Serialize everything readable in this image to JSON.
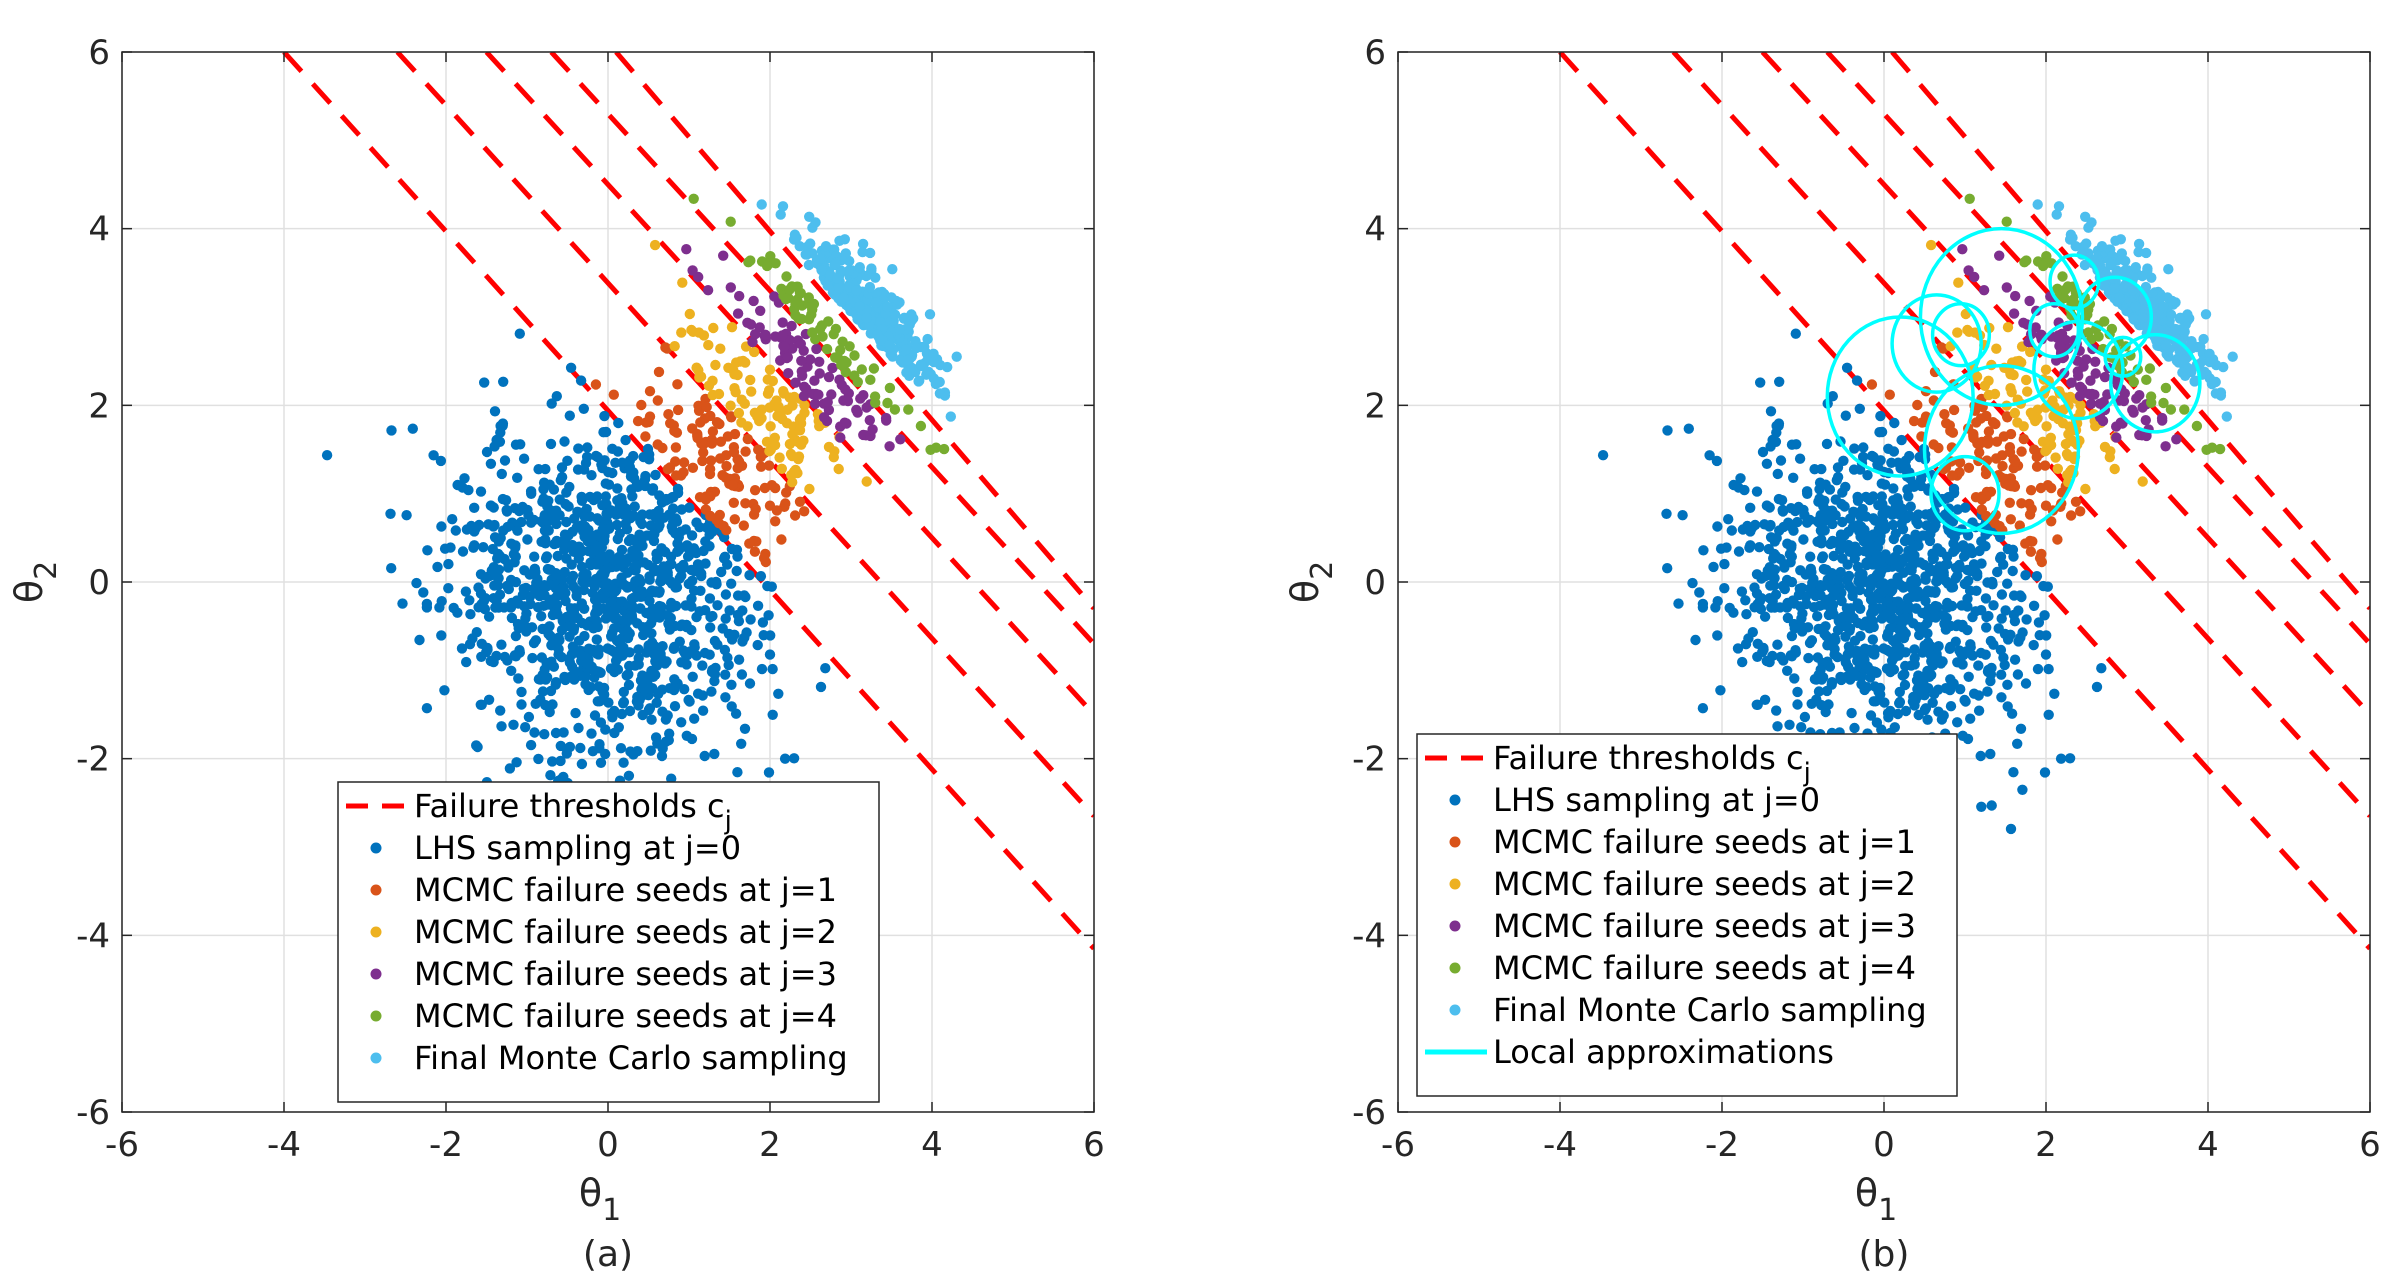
{
  "figure_captions": [
    "(a)",
    "(b)"
  ],
  "colors": {
    "threshold": "#ff0000",
    "lhs": "#0072bd",
    "j1": "#d95319",
    "j2": "#edb120",
    "j3": "#7e2f8e",
    "j4": "#77ac30",
    "final": "#4dbeee",
    "local": "#00ffff",
    "grid": "#e0e0e0"
  },
  "chart_data": [
    {
      "type": "scatter",
      "panel": "(a)",
      "xlabel": "θ",
      "xlabel_sub": "1",
      "ylabel": "θ",
      "ylabel_sub": "2",
      "xlim": [
        -6,
        6
      ],
      "ylim": [
        -6,
        6
      ],
      "xticks": [
        "-6",
        "-4",
        "-2",
        "0",
        "2",
        "4",
        "6"
      ],
      "yticks": [
        "-6",
        "-4",
        "-2",
        "0",
        "2",
        "4",
        "6"
      ],
      "grid": true,
      "legend_position": "bottom-center",
      "thresholds": [
        {
          "name": "c1",
          "x": [
            -4.0,
            6.0
          ],
          "y": [
            6.0,
            -4.15
          ]
        },
        {
          "name": "c2",
          "x": [
            -2.6,
            6.0
          ],
          "y": [
            6.0,
            -2.65
          ]
        },
        {
          "name": "c3",
          "x": [
            -1.5,
            6.0
          ],
          "y": [
            6.0,
            -1.5
          ]
        },
        {
          "name": "c4",
          "x": [
            -0.7,
            6.0
          ],
          "y": [
            6.0,
            -0.7
          ]
        },
        {
          "name": "c5",
          "x": [
            0.1,
            6.0
          ],
          "y": [
            6.0,
            -0.3
          ]
        }
      ],
      "series": [
        {
          "name": "LHS sampling at j=0",
          "color_key": "lhs",
          "distribution": "gaussian",
          "center": [
            0.0,
            0.0
          ],
          "spread": [
            1.0,
            1.0
          ],
          "count": 1100,
          "cutoff_sum": 2.0
        },
        {
          "name": "MCMC failure seeds at j=1",
          "color_key": "j1",
          "distribution": "band",
          "sum_range": [
            2.0,
            3.4
          ],
          "count": 130
        },
        {
          "name": "MCMC failure seeds at j=2",
          "color_key": "j2",
          "distribution": "band",
          "sum_range": [
            3.4,
            4.5
          ],
          "count": 110
        },
        {
          "name": "MCMC failure seeds at j=3",
          "color_key": "j3",
          "distribution": "band",
          "sum_range": [
            4.5,
            5.3
          ],
          "count": 90
        },
        {
          "name": "MCMC failure seeds at j=4",
          "color_key": "j4",
          "distribution": "band",
          "sum_range": [
            5.3,
            5.7
          ],
          "count": 70
        },
        {
          "name": "Final Monte Carlo sampling",
          "color_key": "final",
          "distribution": "cluster",
          "center": [
            3.1,
            2.95
          ],
          "spread": [
            0.55,
            0.4
          ],
          "count": 340
        }
      ],
      "legend": [
        {
          "label": "Failure thresholds c",
          "sub": "j",
          "kind": "dash",
          "color_key": "threshold"
        },
        {
          "label": "LHS sampling at j=0",
          "kind": "dot",
          "color_key": "lhs"
        },
        {
          "label": "MCMC failure seeds at j=1",
          "kind": "dot",
          "color_key": "j1"
        },
        {
          "label": "MCMC failure seeds at j=2",
          "kind": "dot",
          "color_key": "j2"
        },
        {
          "label": "MCMC failure seeds at j=3",
          "kind": "dot",
          "color_key": "j3"
        },
        {
          "label": "MCMC failure seeds at j=4",
          "kind": "dot",
          "color_key": "j4"
        },
        {
          "label": "Final Monte Carlo sampling",
          "kind": "dot",
          "color_key": "final"
        }
      ]
    },
    {
      "type": "scatter",
      "panel": "(b)",
      "xlabel": "θ",
      "xlabel_sub": "1",
      "ylabel": "θ",
      "ylabel_sub": "2",
      "xlim": [
        -6,
        6
      ],
      "ylim": [
        -6,
        6
      ],
      "xticks": [
        "-6",
        "-4",
        "-2",
        "0",
        "2",
        "4",
        "6"
      ],
      "yticks": [
        "-6",
        "-4",
        "-2",
        "0",
        "2",
        "4",
        "6"
      ],
      "grid": true,
      "legend_position": "bottom-left",
      "thresholds": [
        {
          "name": "c1",
          "x": [
            -4.0,
            6.0
          ],
          "y": [
            6.0,
            -4.15
          ]
        },
        {
          "name": "c2",
          "x": [
            -2.6,
            6.0
          ],
          "y": [
            6.0,
            -2.65
          ]
        },
        {
          "name": "c3",
          "x": [
            -1.5,
            6.0
          ],
          "y": [
            6.0,
            -1.5
          ]
        },
        {
          "name": "c4",
          "x": [
            -0.7,
            6.0
          ],
          "y": [
            6.0,
            -0.7
          ]
        },
        {
          "name": "c5",
          "x": [
            0.1,
            6.0
          ],
          "y": [
            6.0,
            -0.3
          ]
        }
      ],
      "series": [
        {
          "name": "LHS sampling at j=0",
          "color_key": "lhs",
          "distribution": "gaussian",
          "center": [
            0.0,
            0.0
          ],
          "spread": [
            1.0,
            1.0
          ],
          "count": 1100,
          "cutoff_sum": 2.0
        },
        {
          "name": "MCMC failure seeds at j=1",
          "color_key": "j1",
          "distribution": "band",
          "sum_range": [
            2.0,
            3.4
          ],
          "count": 130
        },
        {
          "name": "MCMC failure seeds at j=2",
          "color_key": "j2",
          "distribution": "band",
          "sum_range": [
            3.4,
            4.5
          ],
          "count": 110
        },
        {
          "name": "MCMC failure seeds at j=3",
          "color_key": "j3",
          "distribution": "band",
          "sum_range": [
            4.5,
            5.3
          ],
          "count": 90
        },
        {
          "name": "MCMC failure seeds at j=4",
          "color_key": "j4",
          "distribution": "band",
          "sum_range": [
            5.3,
            5.7
          ],
          "count": 70
        },
        {
          "name": "Final Monte Carlo sampling",
          "color_key": "final",
          "distribution": "cluster",
          "center": [
            3.1,
            2.95
          ],
          "spread": [
            0.55,
            0.4
          ],
          "count": 340
        }
      ],
      "local_approximations": [
        {
          "cx": 1.45,
          "cy": 3.0,
          "r": 1.0
        },
        {
          "cx": 0.2,
          "cy": 2.1,
          "r": 0.9
        },
        {
          "cx": 0.65,
          "cy": 2.7,
          "r": 0.55
        },
        {
          "cx": 0.95,
          "cy": 2.8,
          "r": 0.35
        },
        {
          "cx": 1.45,
          "cy": 1.5,
          "r": 0.95
        },
        {
          "cx": 1.0,
          "cy": 1.0,
          "r": 0.42
        },
        {
          "cx": 2.1,
          "cy": 2.85,
          "r": 0.3
        },
        {
          "cx": 2.35,
          "cy": 3.4,
          "r": 0.3
        },
        {
          "cx": 2.4,
          "cy": 2.4,
          "r": 0.55
        },
        {
          "cx": 2.95,
          "cy": 2.55,
          "r": 0.22
        },
        {
          "cx": 3.35,
          "cy": 2.25,
          "r": 0.55
        },
        {
          "cx": 2.85,
          "cy": 3.0,
          "r": 0.45
        }
      ],
      "legend": [
        {
          "label": "Failure thresholds c",
          "sub": "j",
          "kind": "dash",
          "color_key": "threshold"
        },
        {
          "label": "LHS sampling at j=0",
          "kind": "dot",
          "color_key": "lhs"
        },
        {
          "label": "MCMC failure seeds at j=1",
          "kind": "dot",
          "color_key": "j1"
        },
        {
          "label": "MCMC failure seeds at j=2",
          "kind": "dot",
          "color_key": "j2"
        },
        {
          "label": "MCMC failure seeds at j=3",
          "kind": "dot",
          "color_key": "j3"
        },
        {
          "label": "MCMC failure seeds at j=4",
          "kind": "dot",
          "color_key": "j4"
        },
        {
          "label": "Final Monte Carlo sampling",
          "kind": "dot",
          "color_key": "final"
        },
        {
          "label": "Local approximations",
          "kind": "line",
          "color_key": "local"
        }
      ]
    }
  ]
}
